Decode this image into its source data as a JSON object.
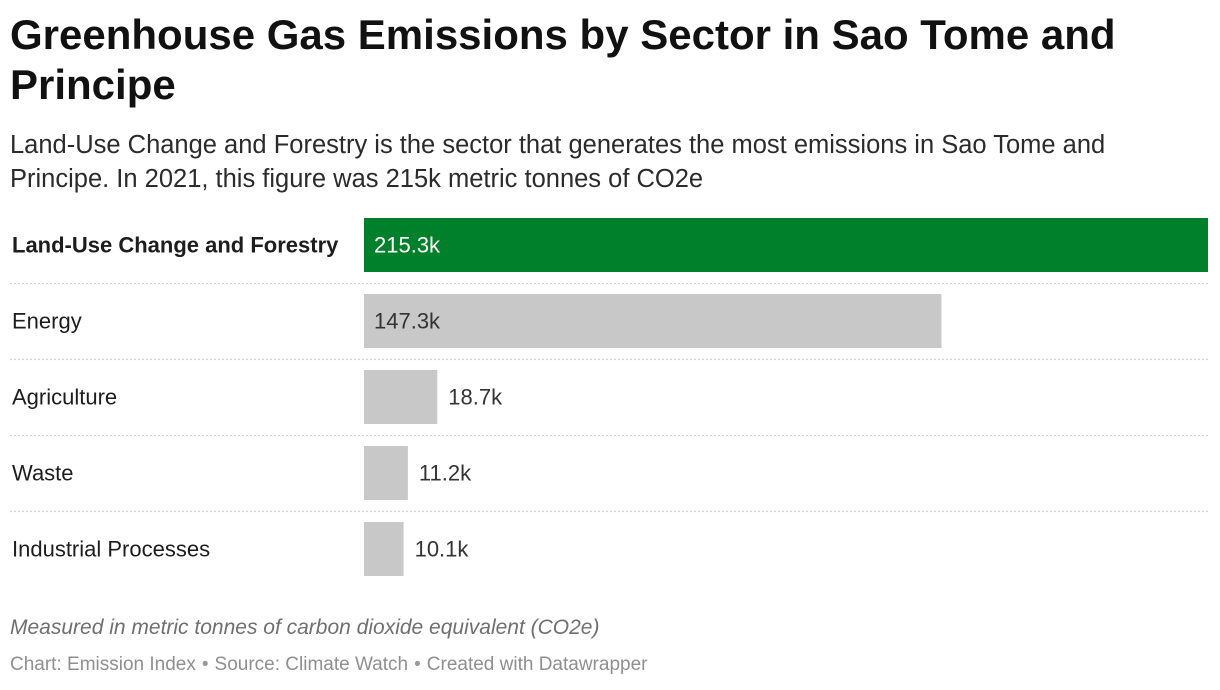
{
  "header": {
    "title": "Greenhouse Gas Emissions by Sector in Sao Tome and Principe",
    "subtitle": "Land-Use Change and Forestry is the sector that generates the most emissions in Sao Tome and Principe. In 2021, this figure was 215k metric tonnes of CO2e"
  },
  "chart_data": {
    "type": "bar",
    "orientation": "horizontal",
    "title": "Greenhouse Gas Emissions by Sector in Sao Tome and Principe",
    "categories": [
      "Land-Use Change and Forestry",
      "Energy",
      "Agriculture",
      "Waste",
      "Industrial Processes"
    ],
    "values": [
      215300,
      147300,
      18700,
      11200,
      10100
    ],
    "value_labels": [
      "215.3k",
      "147.3k",
      "18.7k",
      "11.2k",
      "10.1k"
    ],
    "xlim": [
      0,
      215300
    ],
    "highlight_index": 0,
    "colors": {
      "highlight": "#00802b",
      "default": "#c8c8c8",
      "label_on_highlight": "#ffffff",
      "label_default": "#333333",
      "row_divider": "#d4d4d4"
    },
    "grid": false,
    "legend": "none"
  },
  "footer": {
    "notes": "Measured in metric tonnes of carbon dioxide equivalent (CO2e)",
    "chart_credit": "Chart: Emission Index",
    "source": "Source: Climate Watch",
    "created_with": "Created with Datawrapper",
    "separator": "•"
  }
}
